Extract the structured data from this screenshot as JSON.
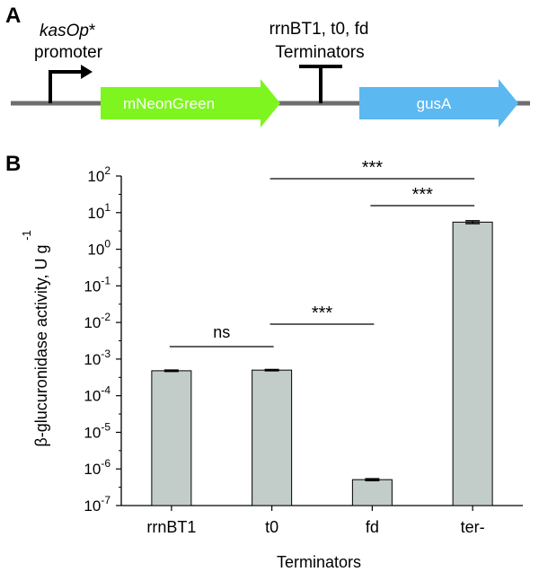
{
  "panel_a": {
    "label": "A",
    "promoter_italic": "kasOp",
    "promoter_star": "*",
    "promoter_word": "promoter",
    "terminator_line1": "rrnBT1, t0, fd",
    "terminator_line2": "Terminators",
    "gene1": "mNeonGreen",
    "gene2": "gusA",
    "colors": {
      "gene1": "#7ff520",
      "gene2": "#5bb8f0",
      "backbone": "#6e6e6e"
    }
  },
  "panel_b": {
    "label": "B"
  },
  "chart_data": {
    "type": "bar",
    "scale": "log",
    "categories": [
      "rrnBT1",
      "t0",
      "fd",
      "ter-"
    ],
    "values": [
      0.00048,
      0.0005,
      5.1e-07,
      5.5
    ],
    "errors": [
      2e-05,
      2e-05,
      3e-08,
      0.5
    ],
    "ylim": [
      1e-07,
      100
    ],
    "xlabel": "Terminators",
    "ylabel": "β-glucuronidase activity, U g",
    "ylabel_superscript": "-1",
    "yticks": [
      {
        "base": "10",
        "exp": "2"
      },
      {
        "base": "10",
        "exp": "1"
      },
      {
        "base": "10",
        "exp": "0"
      },
      {
        "base": "10",
        "exp": "-1"
      },
      {
        "base": "10",
        "exp": "-2"
      },
      {
        "base": "10",
        "exp": "-3"
      },
      {
        "base": "10",
        "exp": "-4"
      },
      {
        "base": "10",
        "exp": "-5"
      },
      {
        "base": "10",
        "exp": "-6"
      },
      {
        "base": "10",
        "exp": "-7"
      }
    ],
    "bar_color": "#c2ccc8",
    "comparisons": [
      {
        "from": "rrnBT1",
        "to": "t0",
        "label": "ns"
      },
      {
        "from": "t0",
        "to": "fd",
        "label": "***"
      },
      {
        "from": "t0",
        "to": "ter-",
        "label": "***"
      },
      {
        "from": "fd",
        "to": "ter-",
        "label": "***"
      }
    ]
  }
}
